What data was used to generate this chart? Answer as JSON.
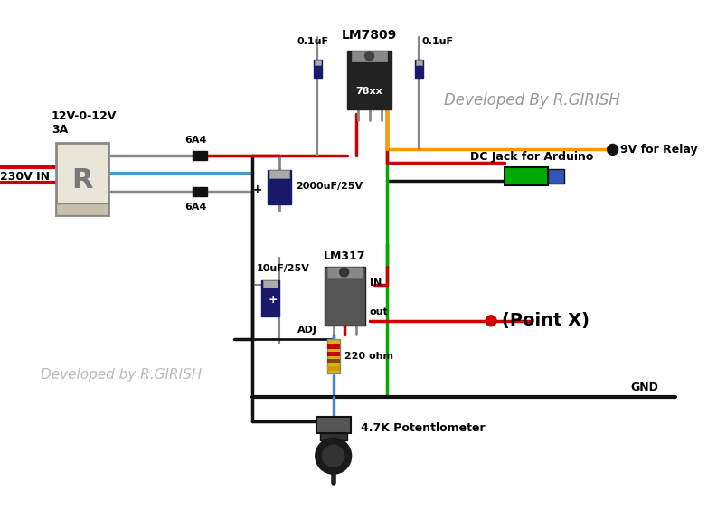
{
  "labels": {
    "transformer": "12V-0-12V\n3A",
    "input": "230V IN",
    "diode1": "6A4",
    "diode2": "6A4",
    "cap_main": "2000uF/25V",
    "lm7809": "LM7809",
    "cap_in": "0.1uF",
    "cap_out": "0.1uF",
    "relay": "9V for Relay",
    "dc_jack": "DC Jack for Arduino",
    "lm317": "LM317",
    "cap_small": "10uF/25V",
    "point_x": "(Point X)",
    "in_label": "IN",
    "out_label": "out",
    "adj_label": "ADJ",
    "resistor": "220 ohm",
    "gnd": "GND",
    "pot": "4.7K Potentlometer",
    "dev1": "Developed By R.GIRISH",
    "dev2": "Developed by R.GIRISH",
    "ic7809_text": "78xx"
  },
  "colors": {
    "red": "#cc0000",
    "blue": "#4488cc",
    "green": "#00aa00",
    "black": "#111111",
    "orange": "#ff9900",
    "gray": "#888888",
    "dark_blue": "#1a1a6a",
    "bg": "#ffffff",
    "transformer_body": "#e8e4d8",
    "ic_dark": "#222222",
    "ic_gray": "#555555",
    "cap_silver": "#aaaaaa",
    "resistor_body": "#d4b800",
    "dc_jack_green": "#00aa00",
    "dc_jack_blue": "#3355bb",
    "text_gray": "#999999",
    "text_dark_gray": "#555555"
  }
}
